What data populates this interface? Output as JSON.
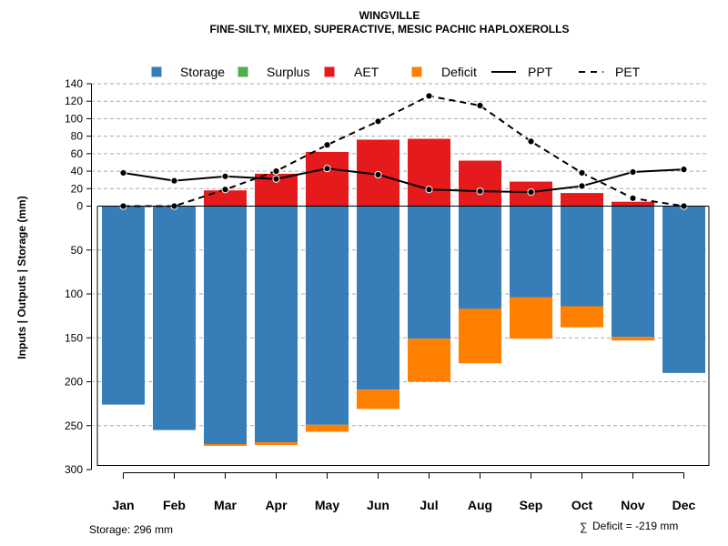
{
  "chart_data": {
    "type": "bar",
    "title": "WINGVILLE",
    "subtitle": "FINE-SILTY, MIXED, SUPERACTIVE, MESIC PACHIC HAPLOXEROLLS",
    "ylabel": "Inputs | Outputs | Storage     (mm)",
    "categories": [
      "Jan",
      "Feb",
      "Mar",
      "Apr",
      "May",
      "Jun",
      "Jul",
      "Aug",
      "Sep",
      "Oct",
      "Nov",
      "Dec"
    ],
    "upper_axis": {
      "range": [
        0,
        140
      ],
      "ticks": [
        0,
        20,
        40,
        60,
        80,
        100,
        120,
        140
      ]
    },
    "lower_axis": {
      "range": [
        0,
        300
      ],
      "ticks": [
        50,
        100,
        150,
        200,
        250,
        300
      ]
    },
    "series": [
      {
        "name": "Storage",
        "color": "#377EB8",
        "values": [
          226,
          255,
          271,
          269,
          249,
          209,
          151,
          117,
          104,
          114,
          149,
          190
        ]
      },
      {
        "name": "Surplus",
        "color": "#4DAF4A",
        "values": [
          0,
          0,
          0,
          0,
          0,
          0,
          0,
          0,
          0,
          0,
          0,
          0
        ]
      },
      {
        "name": "AET",
        "color": "#E41A1C",
        "values": [
          0,
          0,
          18,
          37,
          62,
          76,
          77,
          52,
          28,
          15,
          5,
          0
        ]
      },
      {
        "name": "Deficit",
        "color": "#FF7F00",
        "values": [
          0,
          0,
          2,
          3,
          8,
          22,
          49,
          62,
          47,
          24,
          4,
          0
        ]
      },
      {
        "name": "PPT",
        "color": "#000000",
        "line": "solid",
        "values": [
          38,
          29,
          34,
          31,
          43,
          36,
          19,
          17,
          16,
          23,
          39,
          42
        ]
      },
      {
        "name": "PET",
        "color": "#000000",
        "line": "dashed",
        "values": [
          0,
          0,
          19,
          40,
          70,
          97,
          126,
          115,
          74,
          38,
          9,
          0
        ]
      }
    ],
    "legend_position": "top",
    "grid": true
  },
  "footer": {
    "storage_note": "Storage: 296 mm",
    "sum_symbol": "∑",
    "deficit_note": "Deficit = -219 mm"
  }
}
